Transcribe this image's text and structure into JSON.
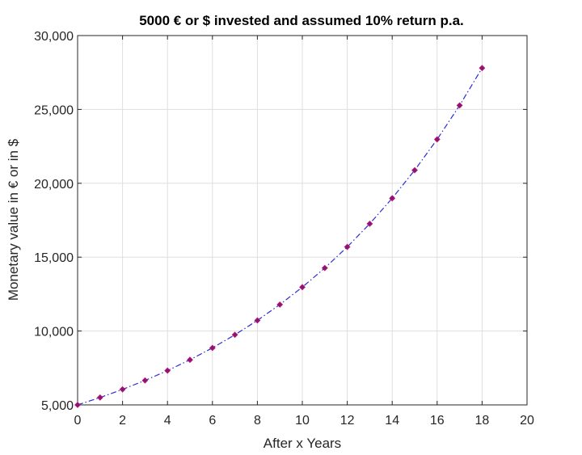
{
  "chart_data": {
    "type": "line",
    "title": "5000 € or $ invested and assumed 10% return p.a.",
    "xlabel": "After x Years",
    "ylabel": "Monetary value in € or in $",
    "xlim": [
      0,
      20
    ],
    "ylim": [
      5000,
      30000
    ],
    "xticks": [
      0,
      2,
      4,
      6,
      8,
      10,
      12,
      14,
      16,
      18,
      20
    ],
    "yticks": [
      5000,
      10000,
      15000,
      20000,
      25000,
      30000
    ],
    "xtick_labels": [
      "0",
      "2",
      "4",
      "6",
      "8",
      "10",
      "12",
      "14",
      "16",
      "18",
      "20"
    ],
    "ytick_labels": [
      "5,000",
      "10,000",
      "15,000",
      "20,000",
      "25,000",
      "30,000"
    ],
    "grid": true,
    "line_color": "#2b2bd4",
    "line_style": "dash-dot",
    "marker_color": "#c0106a",
    "marker_fill_color": "#7a1a7a",
    "series": [
      {
        "x": [
          0,
          1,
          2,
          3,
          4,
          5,
          6,
          7,
          8,
          9,
          10,
          11,
          12,
          13,
          14,
          15,
          16,
          17,
          18
        ],
        "y": [
          5000,
          5500,
          6050,
          6655,
          7321,
          8053,
          8858,
          9744,
          10718,
          11790,
          12969,
          14266,
          15692,
          17261,
          18987,
          20886,
          22975,
          25272,
          27800
        ]
      }
    ]
  }
}
